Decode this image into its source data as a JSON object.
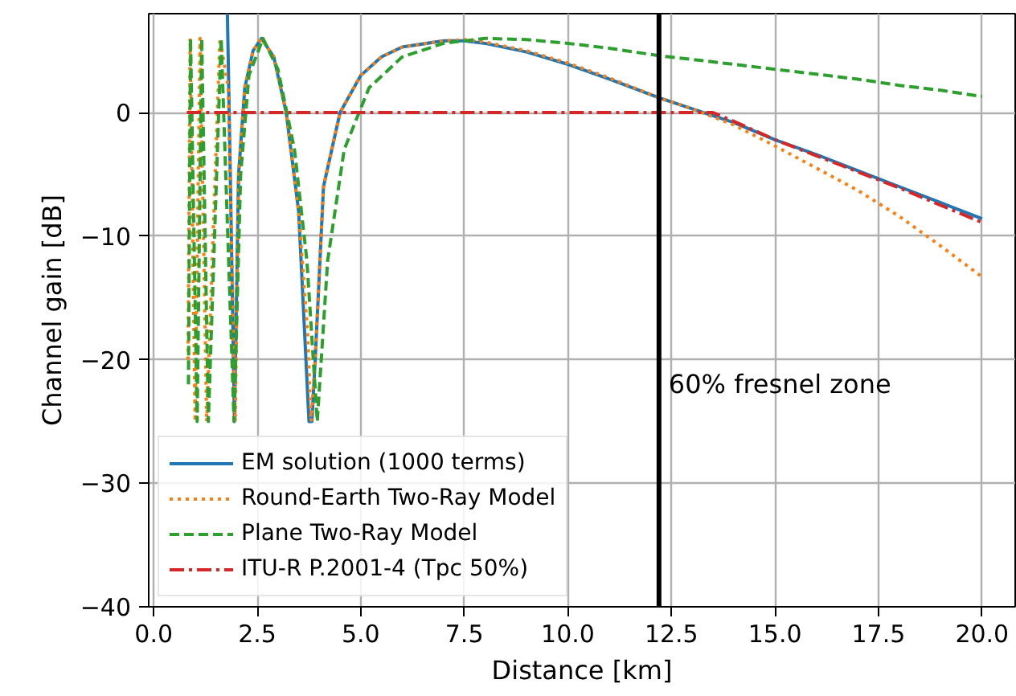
{
  "chart_data": {
    "type": "line",
    "xlabel": "Distance [km]",
    "ylabel": "Channel gain [dB]",
    "xlim": [
      -0.12,
      20.8
    ],
    "ylim": [
      -40,
      8
    ],
    "xticks": [
      {
        "value": 0,
        "label": "0.0"
      },
      {
        "value": 2.5,
        "label": "2.5"
      },
      {
        "value": 5,
        "label": "5.0"
      },
      {
        "value": 7.5,
        "label": "7.5"
      },
      {
        "value": 10,
        "label": "10.0"
      },
      {
        "value": 12.5,
        "label": "12.5"
      },
      {
        "value": 15,
        "label": "15.0"
      },
      {
        "value": 17.5,
        "label": "17.5"
      },
      {
        "value": 20,
        "label": "20.0"
      }
    ],
    "yticks": [
      {
        "value": -40,
        "label": "−40"
      },
      {
        "value": -30,
        "label": "−30"
      },
      {
        "value": -20,
        "label": "−20"
      },
      {
        "value": -10,
        "label": "−10"
      },
      0
    ],
    "grid": true,
    "legend": "bottom left",
    "series": [
      {
        "name": "EM solution (1000 terms)",
        "color": "#1f77b4",
        "line_style": "solid",
        "x": [
          1.78,
          1.85,
          1.95,
          2.05,
          2.2,
          2.4,
          2.6,
          2.9,
          3.2,
          3.5,
          3.75,
          3.82,
          3.9,
          4.1,
          4.5,
          5,
          5.5,
          6,
          7,
          7.5,
          8,
          9,
          10,
          11,
          12.2,
          13,
          14,
          15,
          16,
          17,
          18,
          19,
          20
        ],
        "values": [
          8,
          -5,
          -25,
          -5,
          2,
          5,
          6,
          4.5,
          0,
          -8,
          -25,
          -25,
          -20,
          -6,
          0,
          3,
          4.5,
          5.3,
          5.8,
          5.8,
          5.6,
          4.9,
          3.9,
          2.7,
          1.2,
          0.3,
          -0.8,
          -2.2,
          -3.4,
          -4.7,
          -6,
          -7.3,
          -8.6
        ]
      },
      {
        "name": "Round-Earth Two-Ray Model",
        "color": "#ff7f0e",
        "line_style": "dotted",
        "x": [
          0.83,
          0.88,
          1.0,
          1.12,
          1.28,
          1.6,
          1.8,
          1.97,
          2.05,
          2.2,
          2.4,
          2.6,
          2.9,
          3.2,
          3.5,
          3.72,
          3.8,
          3.9,
          4.1,
          4.5,
          5,
          5.5,
          6,
          7,
          7.5,
          8,
          9,
          10,
          11,
          12.2,
          13,
          14,
          15,
          16,
          17,
          18,
          19,
          20
        ],
        "values": [
          -20,
          6,
          -25,
          6,
          -25,
          6,
          2,
          -25,
          -5,
          2,
          5,
          6,
          4.5,
          0,
          -8,
          -18,
          -25,
          -20,
          -6,
          0,
          3,
          4.5,
          5.3,
          5.8,
          5.9,
          5.7,
          5.0,
          4.0,
          2.8,
          1.2,
          0.3,
          -1,
          -2.7,
          -4.5,
          -6.3,
          -8.4,
          -10.8,
          -13.3
        ]
      },
      {
        "name": "Plane Two-Ray Model",
        "color": "#2ca02c",
        "line_style": "dashed",
        "x": [
          0.84,
          0.89,
          1.05,
          1.16,
          1.32,
          1.63,
          1.94,
          2.1,
          2.3,
          2.64,
          3.0,
          3.4,
          3.7,
          3.95,
          4.2,
          4.6,
          5.2,
          6,
          7,
          8,
          9,
          10,
          11,
          12.2,
          13,
          14,
          15,
          16,
          17,
          18,
          19,
          20
        ],
        "values": [
          -22,
          6,
          -25,
          6,
          -25,
          6,
          -25,
          -5,
          3,
          6,
          3.5,
          -3,
          -12,
          -25,
          -12,
          -3,
          2,
          4.5,
          5.6,
          6,
          5.9,
          5.6,
          5.2,
          4.6,
          4.3,
          3.9,
          3.5,
          3.1,
          2.7,
          2.2,
          1.8,
          1.3
        ]
      },
      {
        "name": "ITU-R P.2001-4 (Tpc 50%)",
        "color": "#d62728",
        "line_style": "dashdot",
        "x": [
          0.8,
          13.5,
          14,
          15,
          16,
          17,
          18,
          19,
          20
        ],
        "values": [
          0,
          0,
          -0.7,
          -2.2,
          -3.5,
          -4.8,
          -6.1,
          -7.5,
          -8.9
        ]
      }
    ],
    "ref_lines": [
      {
        "axis": "x",
        "value": 12.2,
        "label": "60% fresnel zone",
        "color": "#000000"
      }
    ]
  }
}
